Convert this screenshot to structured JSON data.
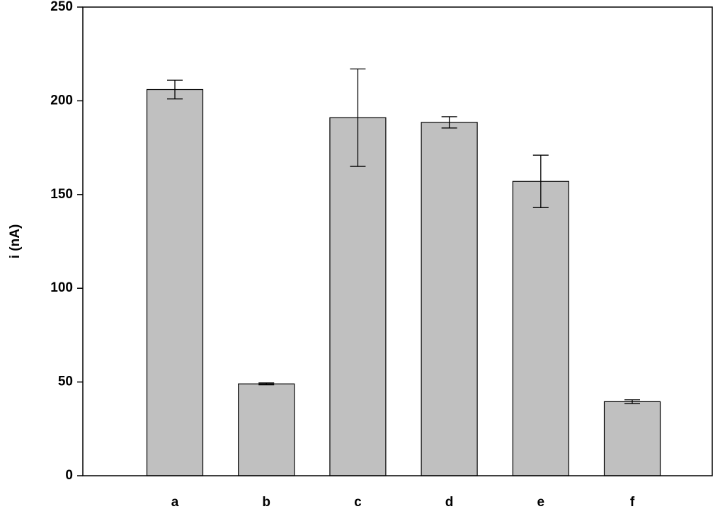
{
  "chart_data": {
    "type": "bar",
    "ylabel": "i (nA)",
    "categories": [
      "a",
      "b",
      "c",
      "d",
      "e",
      "f"
    ],
    "values": [
      206,
      49,
      191,
      188.5,
      157,
      39.5
    ],
    "errors": [
      5,
      0.5,
      26,
      3,
      14,
      1
    ],
    "color": "#c0c0c0",
    "ylim": [
      0,
      250
    ],
    "yticks": [
      0,
      50,
      100,
      150,
      200,
      250
    ]
  }
}
